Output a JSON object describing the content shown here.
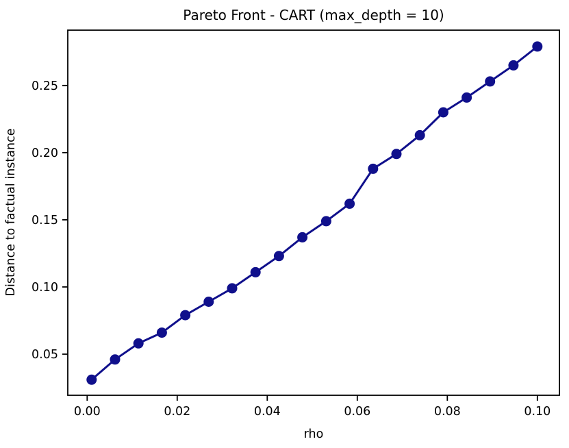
{
  "chart_data": {
    "type": "line",
    "title": "Pareto Front - CART (max_depth = 10)",
    "xlabel": "rho",
    "ylabel": "Distance to factual instance",
    "x": [
      0.001,
      0.0062,
      0.0114,
      0.0166,
      0.0218,
      0.027,
      0.0322,
      0.0374,
      0.0426,
      0.0478,
      0.0531,
      0.0583,
      0.0635,
      0.0687,
      0.0739,
      0.0791,
      0.0843,
      0.0895,
      0.0947,
      0.1
    ],
    "y": [
      0.031,
      0.046,
      0.058,
      0.066,
      0.079,
      0.089,
      0.099,
      0.111,
      0.123,
      0.137,
      0.149,
      0.162,
      0.188,
      0.199,
      0.213,
      0.23,
      0.241,
      0.253,
      0.265,
      0.279
    ],
    "xticks": [
      0.0,
      0.02,
      0.04,
      0.06,
      0.08,
      0.1
    ],
    "xtick_labels": [
      "0.00",
      "0.02",
      "0.04",
      "0.06",
      "0.08",
      "0.10"
    ],
    "yticks": [
      0.05,
      0.1,
      0.15,
      0.2,
      0.25
    ],
    "ytick_labels": [
      "0.05",
      "0.10",
      "0.15",
      "0.20",
      "0.25"
    ],
    "xlim": [
      -0.0043,
      0.1049
    ],
    "ylim": [
      0.0194,
      0.2912
    ],
    "grid": false,
    "legend_position": "none",
    "line_color": "#10108C",
    "axis_color": "#000000",
    "marker": "circle",
    "marker_radius": 7.5,
    "line_width": 3
  }
}
